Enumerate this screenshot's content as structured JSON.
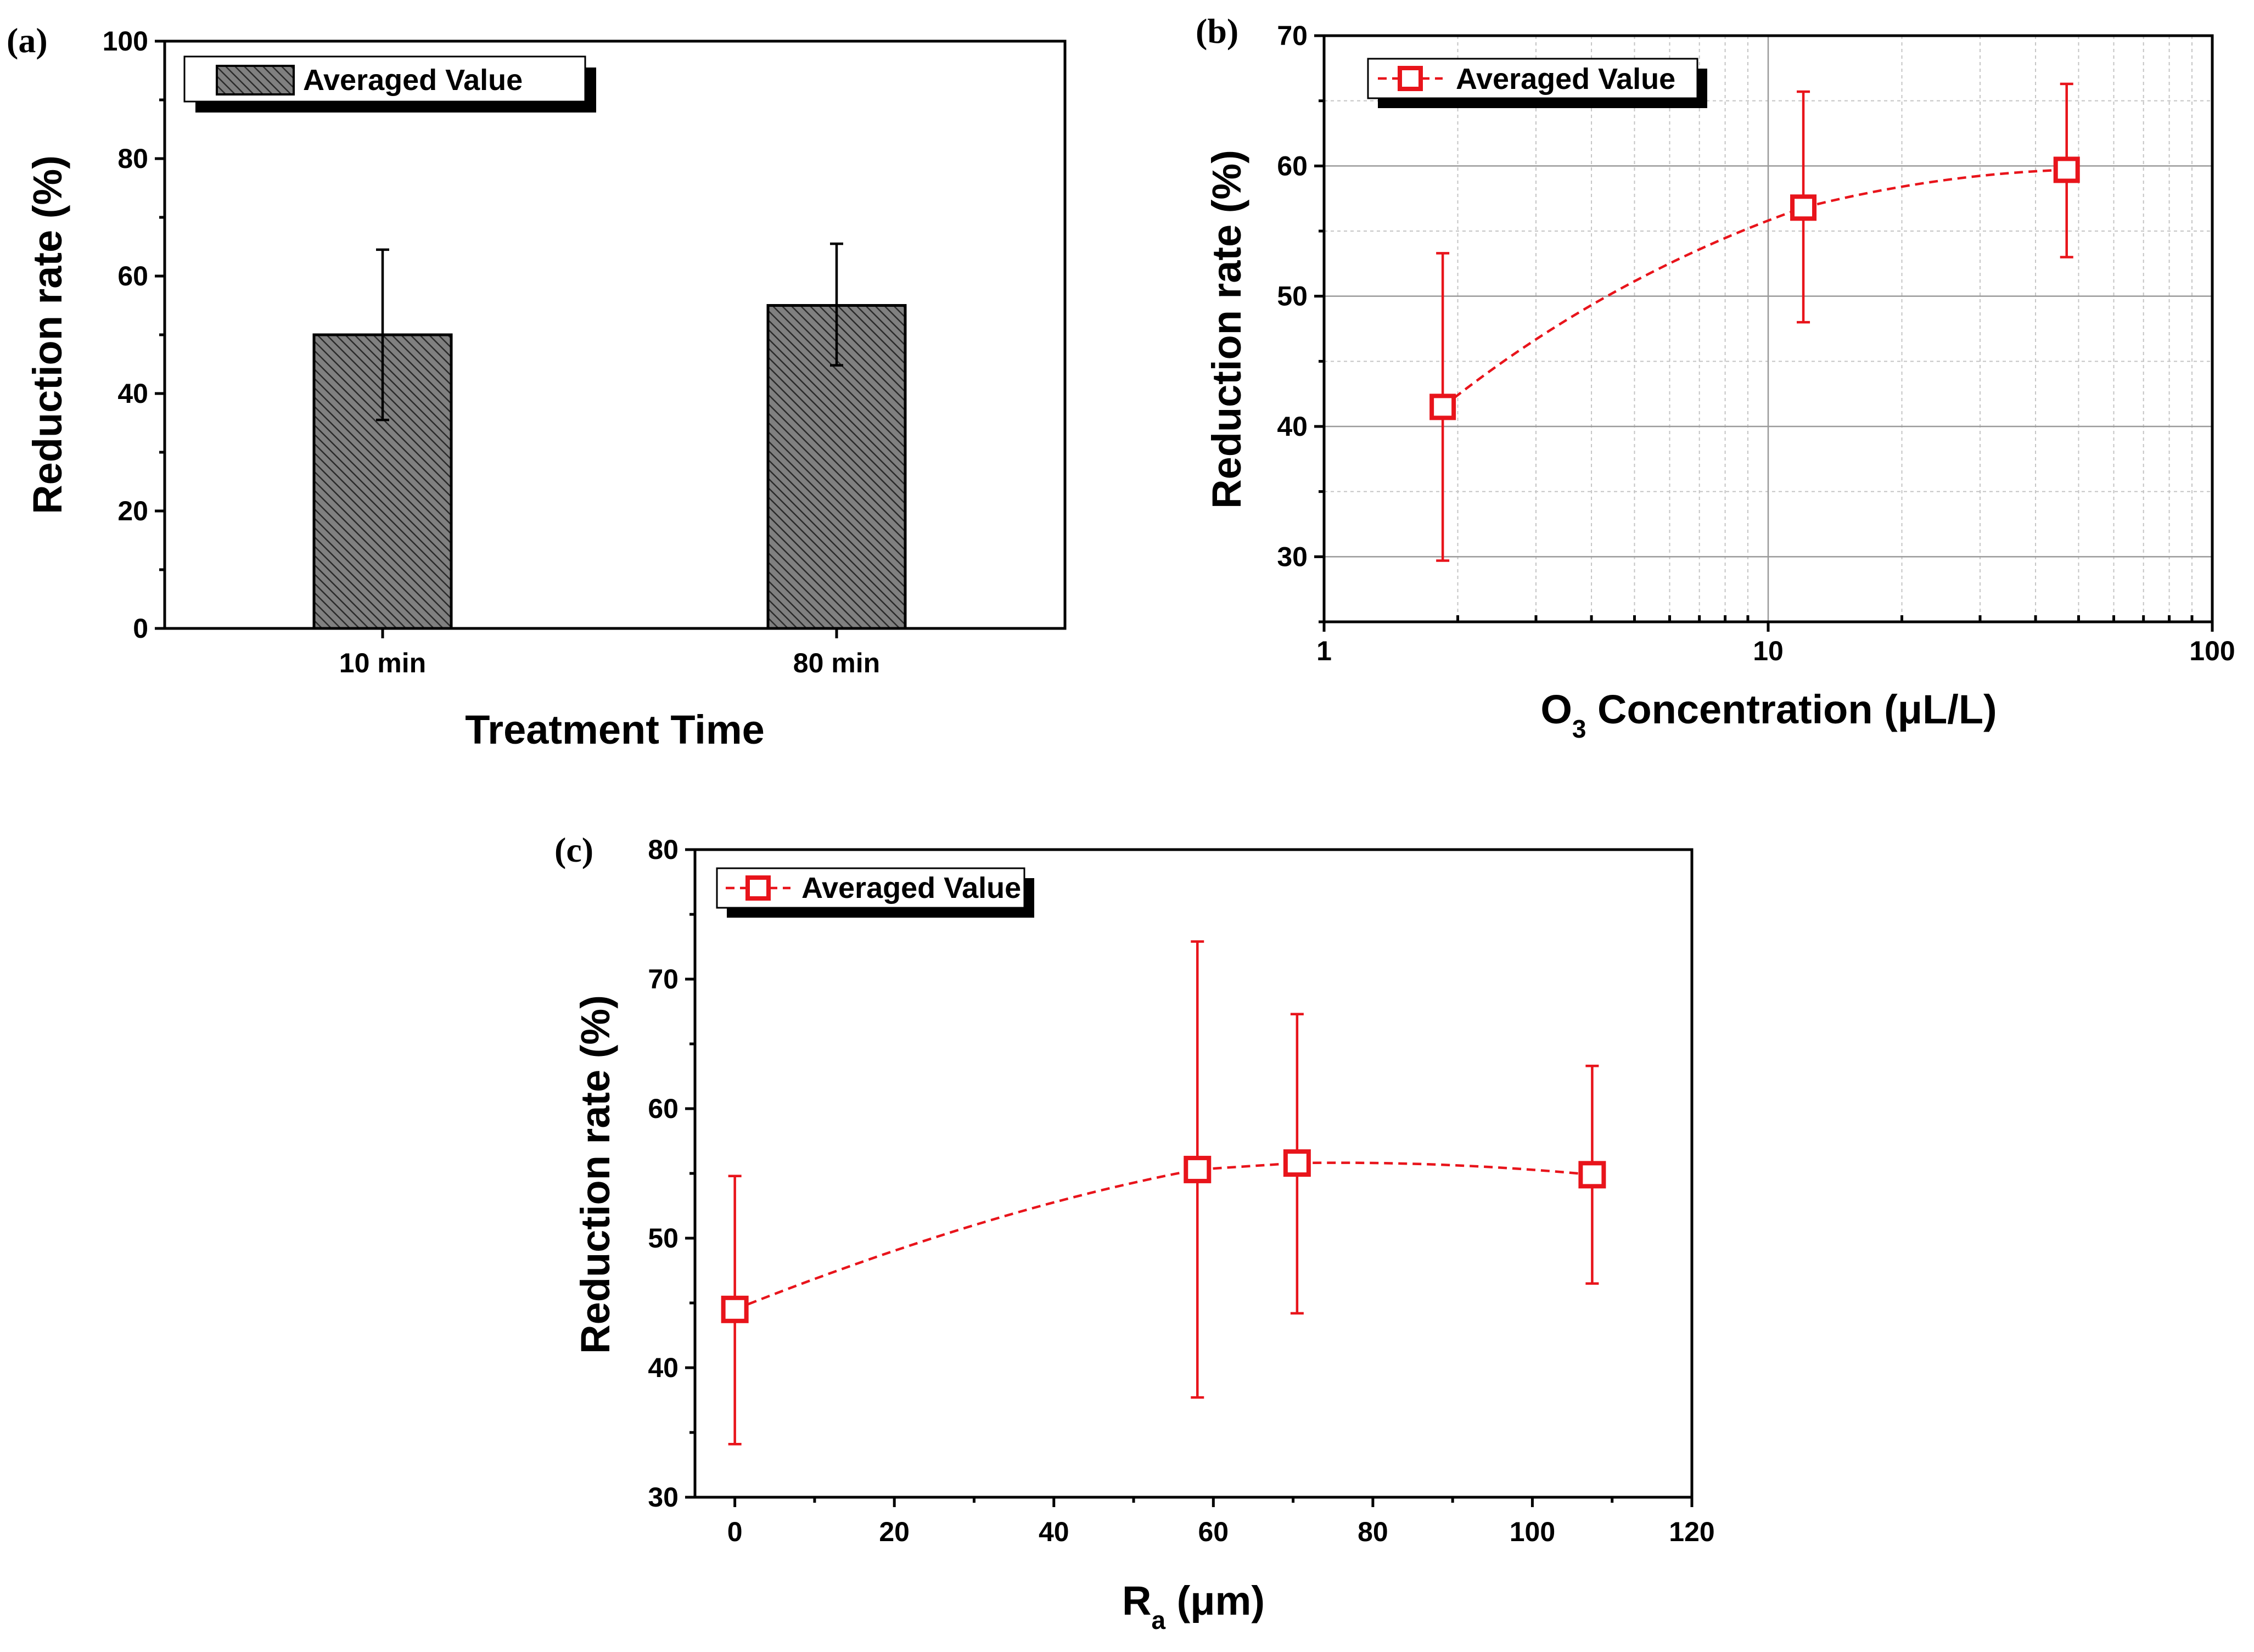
{
  "chart_data": [
    {
      "panel_label": "(a)",
      "type": "bar",
      "categories": [
        "10 min",
        "80 min"
      ],
      "values": [
        50.0,
        55.0
      ],
      "error_high": [
        64.5,
        65.5
      ],
      "error_low": [
        35.5,
        44.8
      ],
      "xlabel": "Treatment Time",
      "ylabel": "Reduction rate (%)",
      "ylim": [
        0,
        100
      ],
      "yticks": [
        "0",
        "20",
        "40",
        "60",
        "80",
        "100"
      ],
      "legend": "Averaged Value",
      "legend_position": "top-left",
      "colors": {
        "bar": "#808080",
        "hatch": "#2a2a2a"
      }
    },
    {
      "panel_label": "(b)",
      "type": "scatter",
      "x_scale": "log",
      "x": [
        1.85,
        12.0,
        47.0
      ],
      "y": [
        41.5,
        56.8,
        59.7
      ],
      "error_high": [
        53.3,
        65.7,
        66.3
      ],
      "error_low": [
        29.7,
        48.0,
        53.0
      ],
      "xlabel": "O3 Concentration (μL/L)",
      "xlabel_parts": {
        "pre": "O",
        "sub": "3",
        "post": " Concentration (μL/L)"
      },
      "ylabel": "Reduction rate (%)",
      "xlim": [
        1,
        100
      ],
      "ylim": [
        25,
        70
      ],
      "xticks": [
        "1",
        "10",
        "100"
      ],
      "yticks": [
        "30",
        "40",
        "50",
        "60",
        "70"
      ],
      "grid": true,
      "legend": "Averaged Value",
      "legend_position": "top-left",
      "colors": {
        "series": "#e8141b"
      }
    },
    {
      "panel_label": "(c)",
      "type": "scatter",
      "x": [
        0,
        58,
        70.5,
        107.5
      ],
      "y": [
        44.5,
        55.3,
        55.8,
        54.9
      ],
      "error_high": [
        54.8,
        72.9,
        67.3,
        63.3
      ],
      "error_low": [
        34.1,
        37.7,
        44.2,
        46.5
      ],
      "xlabel": "Ra (μm)",
      "xlabel_parts": {
        "pre": "R",
        "sub": "a",
        "post": " (μm)"
      },
      "ylabel": "Reduction rate (%)",
      "xlim": [
        -5,
        120
      ],
      "ylim": [
        30,
        80
      ],
      "xticks": [
        "0",
        "20",
        "40",
        "60",
        "80",
        "100",
        "120"
      ],
      "yticks": [
        "30",
        "40",
        "50",
        "60",
        "70",
        "80"
      ],
      "grid": false,
      "legend": "Averaged Value",
      "legend_position": "top-left",
      "colors": {
        "series": "#e8141b"
      }
    }
  ]
}
